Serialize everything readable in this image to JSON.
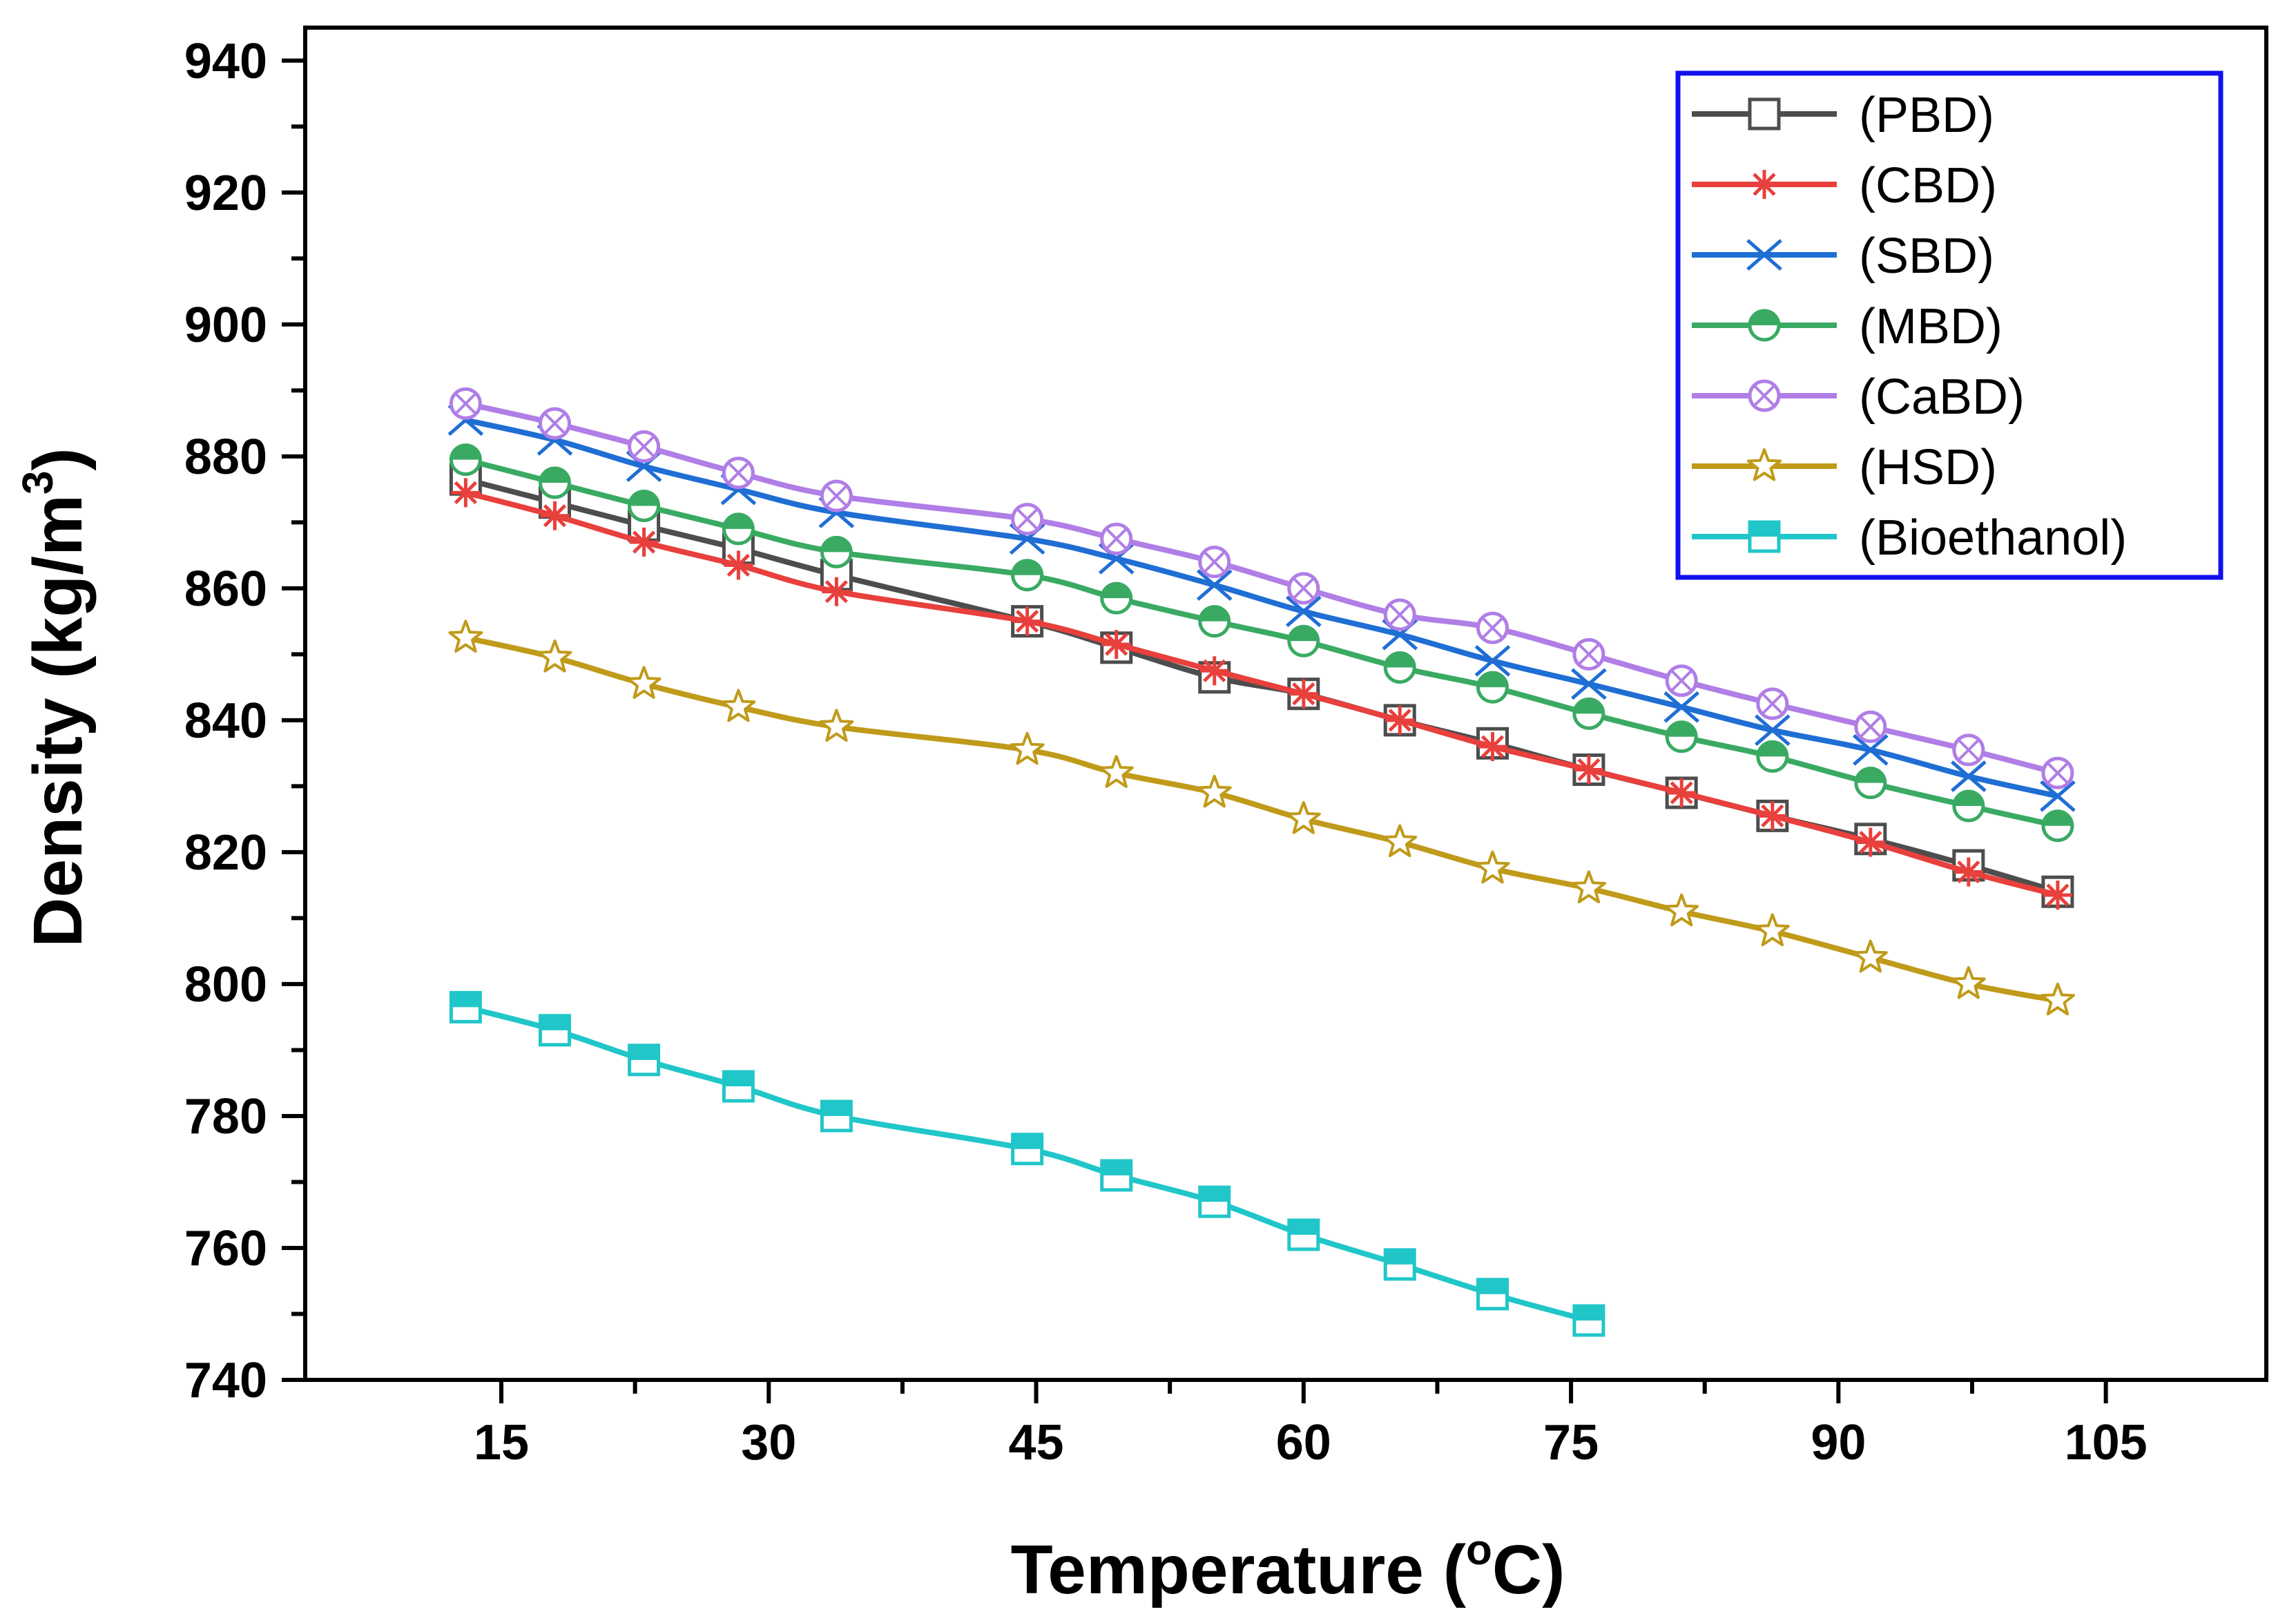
{
  "chart_data": {
    "type": "line",
    "xlabel": "Temperature (",
    "xlabel_sup": "o",
    "xlabel_end": "C)",
    "ylabel": "Density (kg/m",
    "ylabel_sup": "3",
    "ylabel_end": ")",
    "xlim": [
      4,
      114
    ],
    "ylim": [
      740,
      945
    ],
    "x_ticks": [
      15,
      30,
      45,
      60,
      75,
      90,
      105
    ],
    "y_ticks": [
      740,
      760,
      780,
      800,
      820,
      840,
      860,
      880,
      900,
      920,
      940
    ],
    "grid": false,
    "legend_position": "top-right",
    "series": [
      {
        "name": "(PBD)",
        "color": "#4d4d4d",
        "marker": "square-open",
        "x": [
          13,
          18,
          23,
          28.3,
          33.8,
          44.5,
          49.5,
          55,
          60,
          65.4,
          70.6,
          76,
          81.2,
          86.3,
          91.8,
          97.3,
          102.3
        ],
        "y": [
          876.5,
          873,
          869.5,
          866,
          862,
          855,
          851,
          846.5,
          844,
          840,
          836.5,
          832.5,
          829,
          825.5,
          822,
          818,
          814
        ]
      },
      {
        "name": "(CBD)",
        "color": "#e8403c",
        "marker": "asterisk",
        "x": [
          13,
          18,
          23,
          28.3,
          33.8,
          44.5,
          49.5,
          55,
          60,
          65.4,
          70.6,
          76,
          81.2,
          86.3,
          91.8,
          97.3,
          102.3
        ],
        "y": [
          874.5,
          871,
          867,
          863.5,
          859.5,
          855,
          851.5,
          847.5,
          844,
          840,
          836,
          832.5,
          829,
          825.5,
          821.5,
          817,
          813.5
        ]
      },
      {
        "name": "(SBD)",
        "color": "#1f6ed4",
        "marker": "x-cross",
        "x": [
          13,
          18,
          23,
          28.3,
          33.8,
          44.5,
          49.5,
          55,
          60,
          65.4,
          70.6,
          76,
          81.2,
          86.3,
          91.8,
          97.3,
          102.3
        ],
        "y": [
          885.5,
          882.5,
          878.5,
          875,
          871.5,
          867.5,
          864.5,
          860.5,
          856.5,
          853,
          849,
          845.5,
          842,
          838.5,
          835.5,
          831.5,
          828.5
        ]
      },
      {
        "name": "(MBD)",
        "color": "#3aaa63",
        "marker": "circle-half",
        "x": [
          13,
          18,
          23,
          28.3,
          33.8,
          44.5,
          49.5,
          55,
          60,
          65.4,
          70.6,
          76,
          81.2,
          86.3,
          91.8,
          97.3,
          102.3
        ],
        "y": [
          879.5,
          876,
          872.5,
          869,
          865.5,
          862,
          858.5,
          855,
          852,
          848,
          845,
          841,
          837.5,
          834.5,
          830.5,
          827,
          824
        ]
      },
      {
        "name": "(CaBD)",
        "color": "#b07ee6",
        "marker": "circle-x",
        "x": [
          13,
          18,
          23,
          28.3,
          33.8,
          44.5,
          49.5,
          55,
          60,
          65.4,
          70.6,
          76,
          81.2,
          86.3,
          91.8,
          97.3,
          102.3
        ],
        "y": [
          888,
          885,
          881.5,
          877.5,
          874,
          870.5,
          867.5,
          864,
          860,
          856,
          854,
          850,
          846,
          842.5,
          839,
          835.5,
          832
        ]
      },
      {
        "name": "(HSD)",
        "color": "#c09a19",
        "marker": "star",
        "x": [
          13,
          18,
          23,
          28.3,
          33.8,
          44.5,
          49.5,
          55,
          60,
          65.4,
          70.6,
          76,
          81.2,
          86.3,
          91.8,
          97.3,
          102.3
        ],
        "y": [
          852.5,
          849.5,
          845.5,
          842,
          839,
          835.5,
          832,
          829,
          825,
          821.5,
          817.5,
          814.5,
          811,
          808,
          804,
          800,
          797.5
        ]
      },
      {
        "name": "(Bioethanol)",
        "color": "#21c6c9",
        "marker": "square-half",
        "x": [
          13,
          18,
          23,
          28.3,
          33.8,
          44.5,
          49.5,
          55,
          60,
          65.4,
          70.6,
          76
        ],
        "y": [
          796.5,
          793,
          788.5,
          784.5,
          780,
          775,
          771,
          767,
          762,
          757.5,
          753,
          749
        ]
      }
    ]
  }
}
